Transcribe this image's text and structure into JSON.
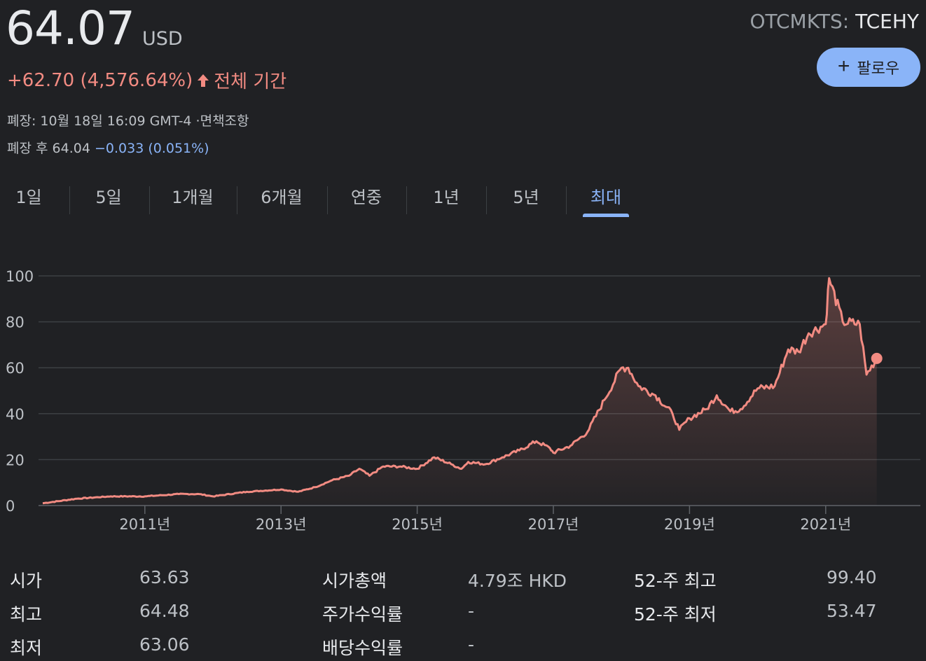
{
  "quote": {
    "price": "64.07",
    "currency": "USD",
    "change": "+62.70 (4,576.64%)",
    "period": "전체 기간",
    "ticker_exchange": "OTCMKTS:",
    "ticker_symbol": "TCEHY",
    "closed_line": "폐장: 10월 18일 16:09 GMT-4 ·면책조항",
    "after_hours_label": "폐장 후 64.04",
    "after_hours_change": "−0.033 (0.051%)",
    "follow_label": "팔로우"
  },
  "colors": {
    "background": "#202124",
    "positive": "#f28b82",
    "accent": "#8ab4f8",
    "line": "#f28b82"
  },
  "tabs": [
    {
      "label": "1일"
    },
    {
      "label": "5일"
    },
    {
      "label": "1개월"
    },
    {
      "label": "6개월"
    },
    {
      "label": "연중"
    },
    {
      "label": "1년"
    },
    {
      "label": "5년"
    },
    {
      "label": "최대",
      "active": true
    }
  ],
  "chart_data": {
    "type": "area",
    "title": "",
    "xlabel": "",
    "ylabel": "",
    "ylim": [
      0,
      100
    ],
    "yticks": [
      0,
      20,
      40,
      60,
      80,
      100
    ],
    "xtick_labels": [
      "2011년",
      "2013년",
      "2015년",
      "2017년",
      "2019년",
      "2021년"
    ],
    "grid": true,
    "series": [
      {
        "x": [
          2009.5,
          2010.0,
          2010.5,
          2011.0,
          2011.5,
          2011.8,
          2012.0,
          2012.5,
          2013.0,
          2013.25,
          2013.5,
          2013.75,
          2014.0,
          2014.15,
          2014.3,
          2014.5,
          2014.75,
          2015.0,
          2015.25,
          2015.5,
          2015.65,
          2015.75,
          2016.0,
          2016.25,
          2016.5,
          2016.75,
          2016.95,
          2017.0,
          2017.25,
          2017.5,
          2017.75,
          2018.0,
          2018.1,
          2018.25,
          2018.5,
          2018.75,
          2018.85,
          2019.0,
          2019.25,
          2019.4,
          2019.6,
          2019.75,
          2020.0,
          2020.25,
          2020.45,
          2020.6,
          2020.75,
          2021.0,
          2021.05,
          2021.25,
          2021.5,
          2021.6,
          2021.75
        ],
        "y": [
          1,
          3,
          4,
          4,
          5,
          5,
          4,
          6,
          7,
          6,
          8,
          11,
          13,
          16,
          13,
          17,
          17,
          16,
          21,
          18,
          16,
          19,
          18,
          21,
          24,
          28,
          25,
          23,
          26,
          32,
          46,
          60,
          60,
          52,
          48,
          40,
          33,
          38,
          42,
          48,
          41,
          42,
          51,
          52,
          68,
          67,
          75,
          79,
          99,
          80,
          79,
          57,
          64.07
        ]
      }
    ]
  },
  "stats": [
    {
      "label": "시가",
      "value": "63.63"
    },
    {
      "label": "최고",
      "value": "64.48"
    },
    {
      "label": "최저",
      "value": "63.06"
    },
    {
      "label": "시가총액",
      "value": "4.79조 HKD"
    },
    {
      "label": "주가수익률",
      "value": "-"
    },
    {
      "label": "배당수익률",
      "value": "-"
    },
    {
      "label": "52-주 최고",
      "value": "99.40"
    },
    {
      "label": "52-주 최저",
      "value": "53.47"
    }
  ]
}
